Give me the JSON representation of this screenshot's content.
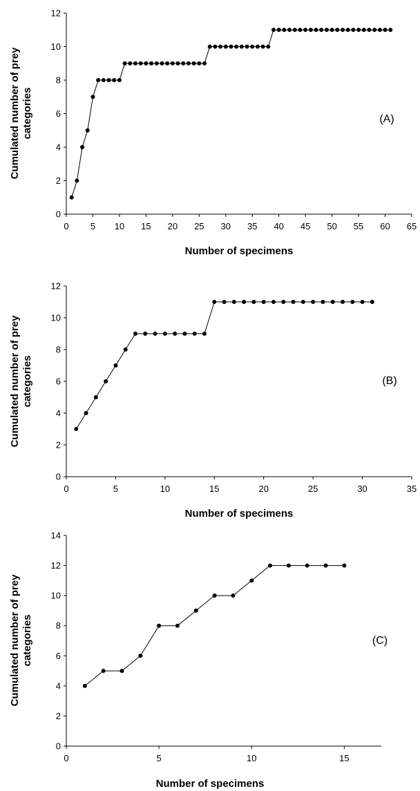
{
  "chart_data": [
    {
      "type": "line",
      "annotation": "(A)",
      "xlabel": "Number of specimens",
      "ylabel": [
        "Cumulated number of prey",
        "categories"
      ],
      "xlim": [
        0,
        65
      ],
      "ylim": [
        0,
        12
      ],
      "xticks": [
        "0",
        "5",
        "10",
        "15",
        "20",
        "25",
        "30",
        "35",
        "40",
        "45",
        "50",
        "55",
        "60",
        "65"
      ],
      "yticks": [
        "0",
        "2",
        "4",
        "6",
        "8",
        "10",
        "12"
      ],
      "grid": false,
      "marker": "filled-circle",
      "x": [
        1,
        2,
        3,
        4,
        5,
        6,
        7,
        8,
        9,
        10,
        11,
        12,
        13,
        14,
        15,
        16,
        17,
        18,
        19,
        20,
        21,
        22,
        23,
        24,
        25,
        26,
        27,
        28,
        29,
        30,
        31,
        32,
        33,
        34,
        35,
        36,
        37,
        38,
        39,
        40,
        41,
        42,
        43,
        44,
        45,
        46,
        47,
        48,
        49,
        50,
        51,
        52,
        53,
        54,
        55,
        56,
        57,
        58,
        59,
        60,
        61
      ],
      "y": [
        1,
        2,
        4,
        5,
        7,
        8,
        8,
        8,
        8,
        8,
        9,
        9,
        9,
        9,
        9,
        9,
        9,
        9,
        9,
        9,
        9,
        9,
        9,
        9,
        9,
        9,
        10,
        10,
        10,
        10,
        10,
        10,
        10,
        10,
        10,
        10,
        10,
        10,
        11,
        11,
        11,
        11,
        11,
        11,
        11,
        11,
        11,
        11,
        11,
        11,
        11,
        11,
        11,
        11,
        11,
        11,
        11,
        11,
        11,
        11,
        11
      ]
    },
    {
      "type": "line",
      "annotation": "(B)",
      "xlabel": "Number of specimens",
      "ylabel": [
        "Cumulated number of prey",
        "categories"
      ],
      "xlim": [
        0,
        35
      ],
      "ylim": [
        0,
        12
      ],
      "xticks": [
        "0",
        "5",
        "10",
        "15",
        "20",
        "25",
        "30",
        "35"
      ],
      "yticks": [
        "0",
        "2",
        "4",
        "6",
        "8",
        "10",
        "12"
      ],
      "grid": false,
      "marker": "filled-circle",
      "x": [
        1,
        2,
        3,
        4,
        5,
        6,
        7,
        8,
        9,
        10,
        11,
        12,
        13,
        14,
        15,
        16,
        17,
        18,
        19,
        20,
        21,
        22,
        23,
        24,
        25,
        26,
        27,
        28,
        29,
        30,
        31
      ],
      "y": [
        3,
        4,
        5,
        6,
        7,
        8,
        9,
        9,
        9,
        9,
        9,
        9,
        9,
        9,
        11,
        11,
        11,
        11,
        11,
        11,
        11,
        11,
        11,
        11,
        11,
        11,
        11,
        11,
        11,
        11,
        11
      ]
    },
    {
      "type": "line",
      "annotation": "(C)",
      "xlabel": "Number of specimens",
      "ylabel": [
        "Cumulated number of prey",
        "categories"
      ],
      "xlim": [
        0,
        17
      ],
      "ylim": [
        0,
        14
      ],
      "xticks": [
        "0",
        "5",
        "10",
        "15"
      ],
      "xtick_values": [
        0,
        5,
        10,
        15
      ],
      "yticks": [
        "0",
        "2",
        "4",
        "6",
        "8",
        "10",
        "12",
        "14"
      ],
      "grid": false,
      "marker": "filled-circle",
      "x": [
        1,
        2,
        3,
        4,
        5,
        6,
        7,
        8,
        9,
        10,
        11,
        12,
        13,
        14,
        15
      ],
      "y": [
        4,
        5,
        5,
        6,
        8,
        8,
        9,
        10,
        10,
        11,
        12,
        12,
        12,
        12,
        12
      ]
    }
  ]
}
